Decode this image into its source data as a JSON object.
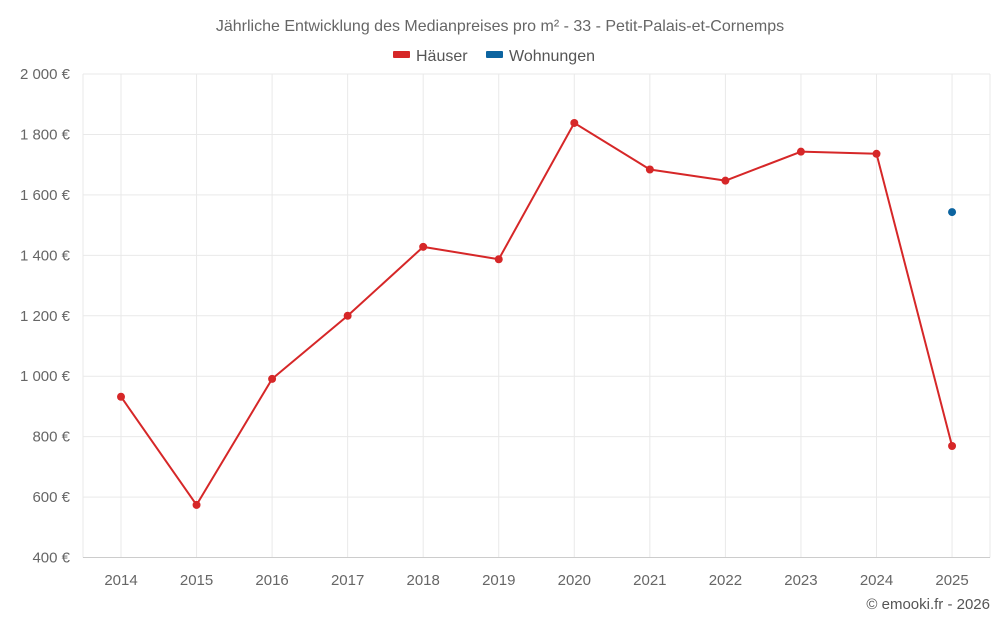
{
  "chart_data": {
    "type": "line",
    "title": "Jährliche Entwicklung des Medianpreises pro m² - 33 - Petit-Palais-et-Cornemps",
    "xlabel": "",
    "ylabel": "",
    "categories": [
      "2014",
      "2015",
      "2016",
      "2017",
      "2018",
      "2019",
      "2020",
      "2021",
      "2022",
      "2023",
      "2024",
      "2025"
    ],
    "series": [
      {
        "name": "Häuser",
        "color": "#d62728",
        "values": [
          932,
          574,
          991,
          1200,
          1428,
          1387,
          1838,
          1684,
          1647,
          1743,
          1736,
          769
        ]
      },
      {
        "name": "Wohnungen",
        "color": "#0c64a0",
        "values": [
          null,
          null,
          null,
          null,
          null,
          null,
          null,
          null,
          null,
          null,
          null,
          1543
        ]
      }
    ],
    "ylim": [
      400,
      2000
    ],
    "yticks": [
      400,
      600,
      800,
      1000,
      1200,
      1400,
      1600,
      1800,
      2000
    ],
    "ytick_labels": [
      "400 €",
      "600 €",
      "800 €",
      "1 000 €",
      "1 200 €",
      "1 400 €",
      "1 600 €",
      "1 800 €",
      "2 000 €"
    ],
    "grid": true,
    "legend_position": "top-center"
  },
  "legend": {
    "items": [
      {
        "label": "Häuser",
        "color": "#d62728"
      },
      {
        "label": "Wohnungen",
        "color": "#0c64a0"
      }
    ]
  },
  "credit": "© emooki.fr - 2026"
}
